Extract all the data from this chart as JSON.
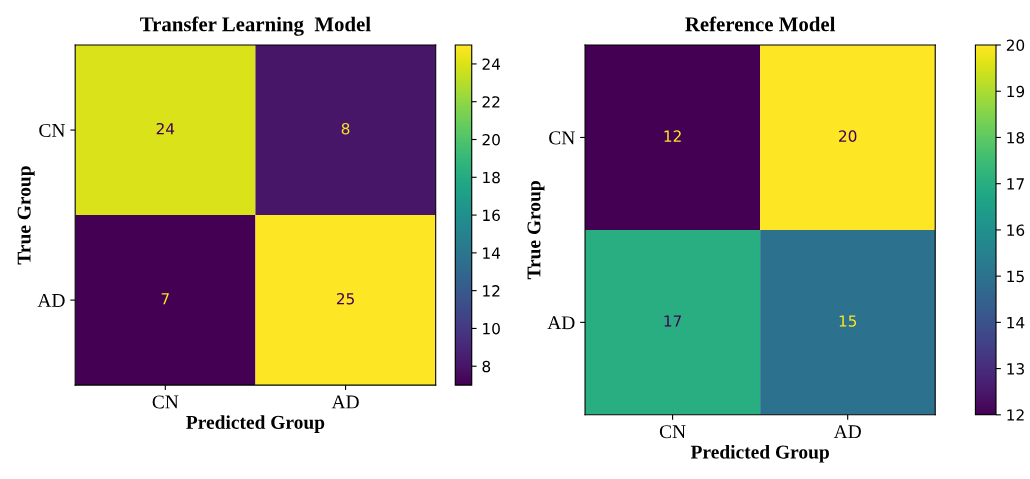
{
  "chart_data": [
    {
      "type": "heatmap",
      "title": "Transfer Learning  Model",
      "xlabel": "Predicted Group",
      "ylabel": "True Group",
      "categories": [
        "CN",
        "AD"
      ],
      "y_categories": [
        "CN",
        "AD"
      ],
      "cells": [
        [
          24,
          8
        ],
        [
          7,
          25
        ]
      ],
      "clim": [
        7,
        25
      ],
      "cticks": [
        8,
        10,
        12,
        14,
        16,
        18,
        20,
        22,
        24
      ],
      "data_labels": true
    },
    {
      "type": "heatmap",
      "title": "Reference Model",
      "xlabel": "Predicted Group",
      "ylabel": "True Group",
      "categories": [
        "CN",
        "AD"
      ],
      "y_categories": [
        "CN",
        "AD"
      ],
      "cells": [
        [
          12,
          20
        ],
        [
          17,
          15
        ]
      ],
      "clim": [
        12,
        20
      ],
      "cticks": [
        12,
        13,
        14,
        15,
        16,
        17,
        18,
        19,
        20
      ],
      "data_labels": true
    }
  ]
}
